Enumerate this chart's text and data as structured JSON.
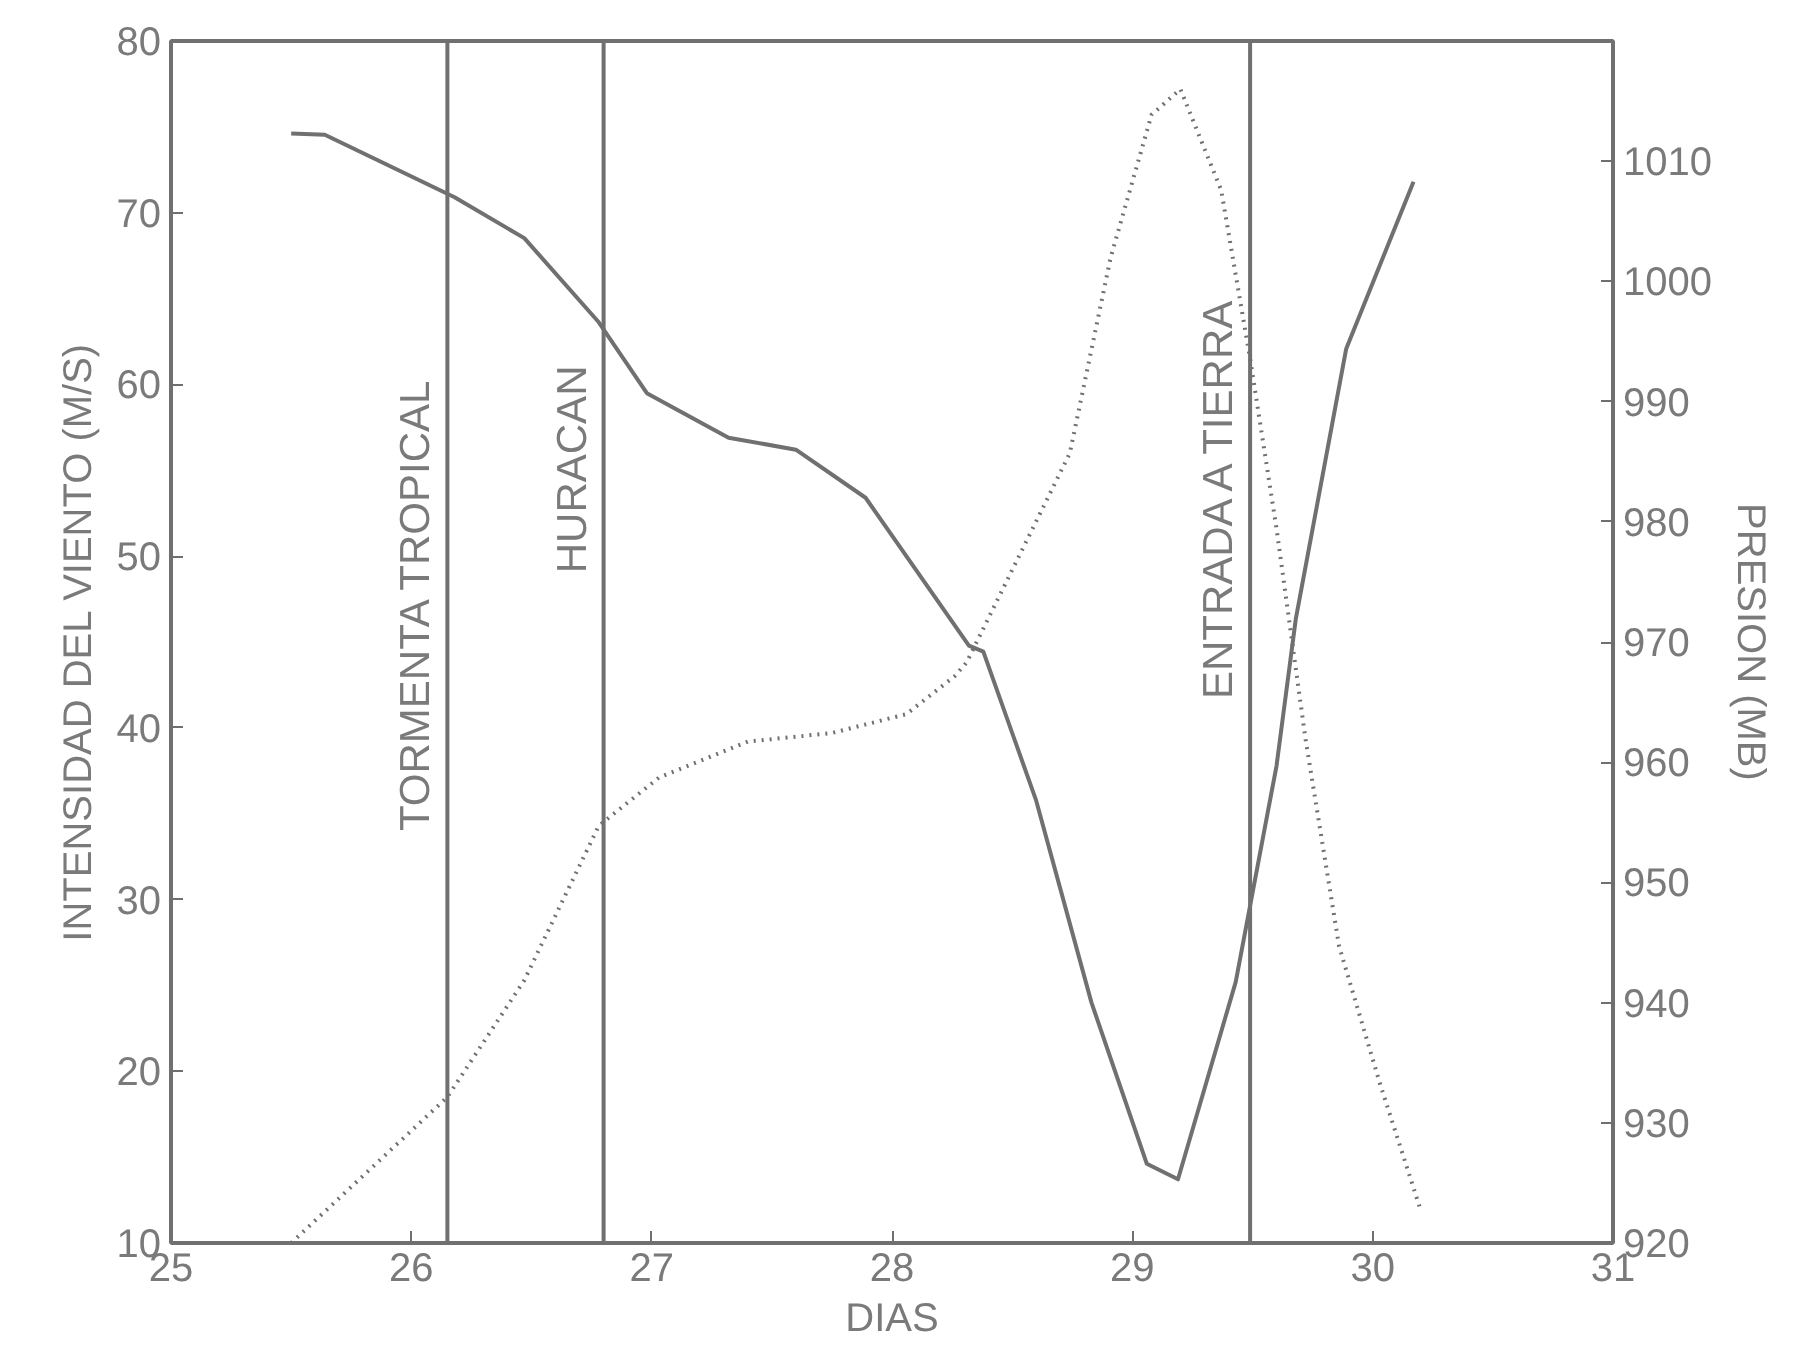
{
  "chart_data": {
    "type": "line",
    "xlabel": "DIAS",
    "ylabel": "INTENSIDAD DEL VIENTO (M/S)",
    "y2label": "PRESION (MB)",
    "xlim": [
      25,
      31
    ],
    "xticks": [
      25,
      26,
      27,
      28,
      29,
      30,
      31
    ],
    "ylim": [
      10,
      80
    ],
    "yticks": [
      10,
      20,
      30,
      40,
      50,
      60,
      70,
      80
    ],
    "y2lim": [
      920,
      1020
    ],
    "y2ticks": [
      920,
      930,
      940,
      950,
      960,
      970,
      980,
      990,
      1000,
      1010
    ],
    "grid": false,
    "marker": "none",
    "series": [
      {
        "color": "#707070",
        "line_style": "dotted",
        "x": [
          25.5,
          26.15,
          26.47,
          26.78,
          27.03,
          27.4,
          27.75,
          28.06,
          28.26,
          28.31,
          28.74,
          28.91,
          29.08,
          29.2,
          29.37,
          29.49,
          29.6,
          29.72,
          29.86,
          30.03,
          30.2
        ],
        "values": [
          10,
          18.5,
          25.3,
          34.3,
          37.1,
          39.2,
          39.7,
          40.8,
          43,
          43.8,
          56,
          67.4,
          75.7,
          77.2,
          71.3,
          61.5,
          51.6,
          39.4,
          27.3,
          19.3,
          11.9
        ]
      },
      {
        "color": "#707070",
        "line_style": "solid",
        "axis": "y2",
        "x": [
          25.5,
          25.64,
          26.18,
          26.47,
          26.78,
          26.98,
          27.32,
          27.6,
          27.89,
          28.32,
          28.38,
          28.6,
          28.83,
          29.06,
          29.19,
          29.43,
          29.6,
          29.68,
          29.89,
          30.17
        ],
        "values": [
          1012.3,
          1012.2,
          1007,
          1003.6,
          996.6,
          990.7,
          987,
          986,
          982,
          969.7,
          969.2,
          956.8,
          940,
          926.6,
          925.3,
          941.7,
          959.7,
          971.9,
          994.4,
          1008.3
        ]
      }
    ],
    "ref_lines": [
      {
        "axis": "x",
        "value": 26.15,
        "label": "TORMENTA TROPICAL",
        "color": "#707070"
      },
      {
        "axis": "x",
        "value": 26.8,
        "label": "HURACAN",
        "color": "#707070"
      },
      {
        "axis": "x",
        "value": 29.49,
        "label": "ENTRADA  A TIERRA",
        "color": "#707070"
      }
    ]
  }
}
